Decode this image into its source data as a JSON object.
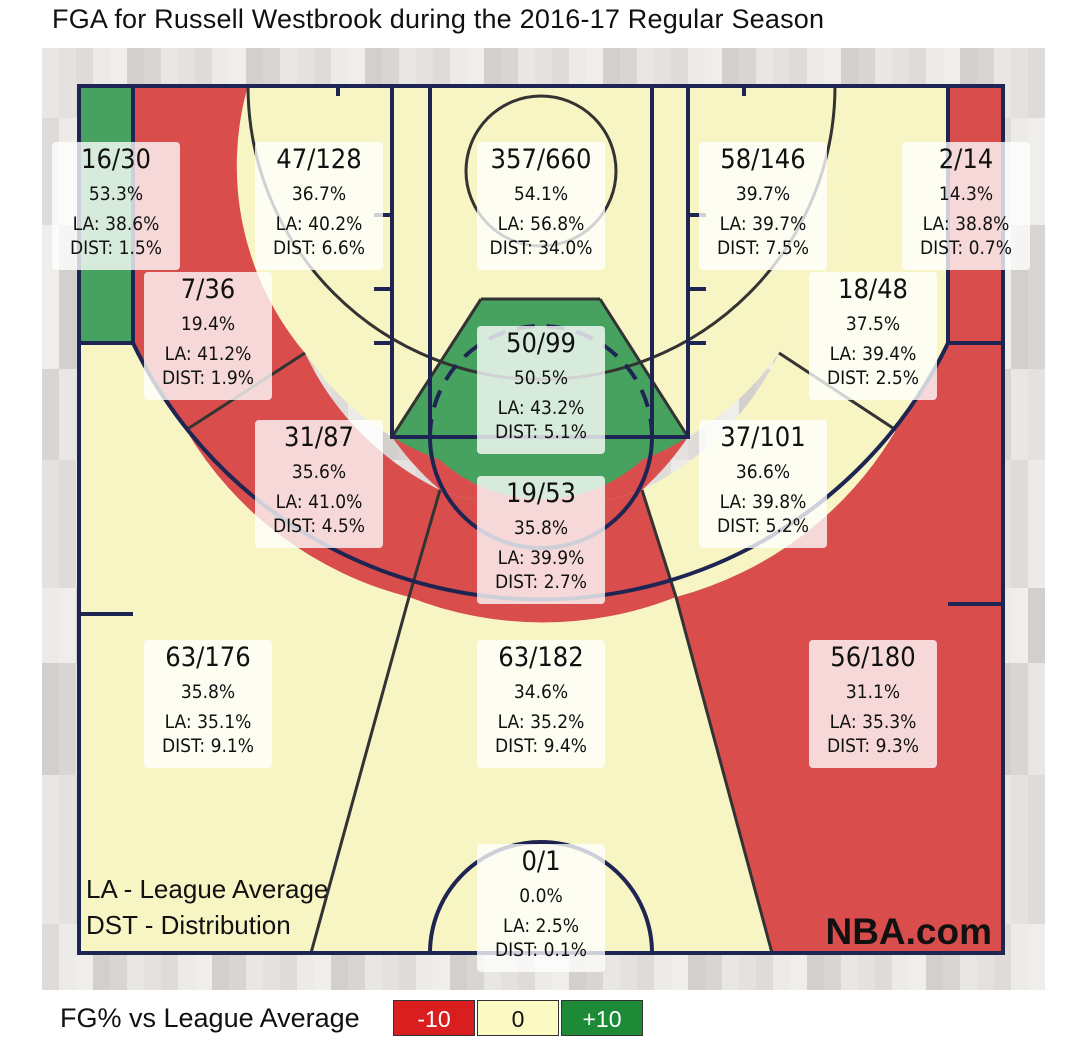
{
  "page_title": "FGA for Russell Westbrook during the 2016-17 Regular Season",
  "watermark": "NBA.com",
  "key_notes": [
    "LA - League Average",
    "DST - Distribution"
  ],
  "legend": {
    "title": "FG% vs League Average",
    "items": [
      {
        "label": "-10",
        "color": "#d81e1e",
        "text_color": "#ffffff"
      },
      {
        "label": "0",
        "color": "#fbfbc3",
        "text_color": "#111111"
      },
      {
        "label": "+10",
        "color": "#1c8a37",
        "text_color": "#ffffff"
      }
    ]
  },
  "colors": {
    "below": "#d94d4d",
    "average": "#f7f5c4",
    "above": "#47a25f",
    "court_lines": "#1f2553",
    "zone_lines": "#333333"
  },
  "chart_data": {
    "type": "heatmap",
    "title": "FGA for Russell Westbrook during the 2016-17 Regular Season",
    "zones": [
      {
        "id": "left-corner-3",
        "fgm_fga": "16/30",
        "fg_pct": "53.3%",
        "la": "LA: 38.6%",
        "dist": "DIST: 1.5%",
        "rating": "above"
      },
      {
        "id": "left-baseline-mid",
        "fgm_fga": "47/128",
        "fg_pct": "36.7%",
        "la": "LA: 40.2%",
        "dist": "DIST: 6.6%",
        "rating": "average"
      },
      {
        "id": "restricted-area",
        "fgm_fga": "357/660",
        "fg_pct": "54.1%",
        "la": "LA: 56.8%",
        "dist": "DIST: 34.0%",
        "rating": "average"
      },
      {
        "id": "right-baseline-mid",
        "fgm_fga": "58/146",
        "fg_pct": "39.7%",
        "la": "LA: 39.7%",
        "dist": "DIST: 7.5%",
        "rating": "average"
      },
      {
        "id": "right-corner-3",
        "fgm_fga": "2/14",
        "fg_pct": "14.3%",
        "la": "LA: 38.8%",
        "dist": "DIST: 0.7%",
        "rating": "below"
      },
      {
        "id": "left-baseline-long-mid",
        "fgm_fga": "7/36",
        "fg_pct": "19.4%",
        "la": "LA: 41.2%",
        "dist": "DIST: 1.9%",
        "rating": "below"
      },
      {
        "id": "right-baseline-long-mid",
        "fgm_fga": "18/48",
        "fg_pct": "37.5%",
        "la": "LA: 39.4%",
        "dist": "DIST: 2.5%",
        "rating": "average"
      },
      {
        "id": "paint-non-ra",
        "fgm_fga": "50/99",
        "fg_pct": "50.5%",
        "la": "LA: 43.2%",
        "dist": "DIST: 5.1%",
        "rating": "above"
      },
      {
        "id": "left-wing-long-mid",
        "fgm_fga": "31/87",
        "fg_pct": "35.6%",
        "la": "LA: 41.0%",
        "dist": "DIST: 4.5%",
        "rating": "below"
      },
      {
        "id": "right-wing-long-mid",
        "fgm_fga": "37/101",
        "fg_pct": "36.6%",
        "la": "LA: 39.8%",
        "dist": "DIST: 5.2%",
        "rating": "average"
      },
      {
        "id": "top-key-long-mid",
        "fgm_fga": "19/53",
        "fg_pct": "35.8%",
        "la": "LA: 39.9%",
        "dist": "DIST: 2.7%",
        "rating": "below"
      },
      {
        "id": "left-wing-3",
        "fgm_fga": "63/176",
        "fg_pct": "35.8%",
        "la": "LA: 35.1%",
        "dist": "DIST: 9.1%",
        "rating": "average"
      },
      {
        "id": "top-key-3",
        "fgm_fga": "63/182",
        "fg_pct": "34.6%",
        "la": "LA: 35.2%",
        "dist": "DIST: 9.4%",
        "rating": "average"
      },
      {
        "id": "right-wing-3",
        "fgm_fga": "56/180",
        "fg_pct": "31.1%",
        "la": "LA: 35.3%",
        "dist": "DIST: 9.3%",
        "rating": "below"
      },
      {
        "id": "backcourt",
        "fgm_fga": "0/1",
        "fg_pct": "0.0%",
        "la": "LA: 2.5%",
        "dist": "DIST: 0.1%",
        "rating": "average"
      }
    ]
  }
}
